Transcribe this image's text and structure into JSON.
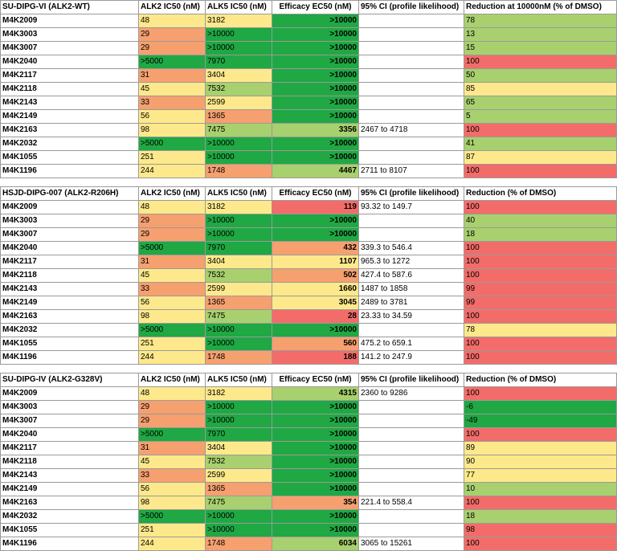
{
  "colors": {
    "dark-green": "#1fa843",
    "light-green": "#a8d06e",
    "yellow": "#fde98b",
    "orange": "#f6a06f",
    "red": "#f26c69",
    "white": "#ffffff"
  },
  "tables": [
    {
      "headers": [
        "SU-DIPG-VI (ALK2-WT)",
        "ALK2 IC50 (nM)",
        "ALK5 IC50 (nM)",
        "Efficacy EC50 (nM)",
        "95% CI (profile likelihood)",
        "Reduction at 10000nM (% of DMSO)"
      ],
      "rows": [
        {
          "compound": "M4K2009",
          "alk2": "48",
          "alk2_c": "ye",
          "alk5": "3182",
          "alk5_c": "ye",
          "ec50": ">10000",
          "ec50_c": "dg",
          "ci": "",
          "ci_c": "wh",
          "red": "78",
          "red_c": "lg"
        },
        {
          "compound": "M4K3003",
          "alk2": "29",
          "alk2_c": "or",
          "alk5": ">10000",
          "alk5_c": "dg",
          "ec50": ">10000",
          "ec50_c": "dg",
          "ci": "",
          "ci_c": "wh",
          "red": "13",
          "red_c": "lg"
        },
        {
          "compound": "M4K3007",
          "alk2": "29",
          "alk2_c": "or",
          "alk5": ">10000",
          "alk5_c": "dg",
          "ec50": ">10000",
          "ec50_c": "dg",
          "ci": "",
          "ci_c": "wh",
          "red": "15",
          "red_c": "lg"
        },
        {
          "compound": "M4K2040",
          "alk2": ">5000",
          "alk2_c": "dg",
          "alk5": "7970",
          "alk5_c": "dg",
          "ec50": ">10000",
          "ec50_c": "dg",
          "ci": "",
          "ci_c": "wh",
          "red": "100",
          "red_c": "rd"
        },
        {
          "compound": "M4K2117",
          "alk2": "31",
          "alk2_c": "or",
          "alk5": "3404",
          "alk5_c": "ye",
          "ec50": ">10000",
          "ec50_c": "dg",
          "ci": "",
          "ci_c": "wh",
          "red": "50",
          "red_c": "lg"
        },
        {
          "compound": "M4K2118",
          "alk2": "45",
          "alk2_c": "ye",
          "alk5": "7532",
          "alk5_c": "lg",
          "ec50": ">10000",
          "ec50_c": "dg",
          "ci": "",
          "ci_c": "wh",
          "red": "85",
          "red_c": "ye"
        },
        {
          "compound": "M4K2143",
          "alk2": "33",
          "alk2_c": "or",
          "alk5": "2599",
          "alk5_c": "ye",
          "ec50": ">10000",
          "ec50_c": "dg",
          "ci": "",
          "ci_c": "wh",
          "red": "65",
          "red_c": "lg"
        },
        {
          "compound": "M4K2149",
          "alk2": "56",
          "alk2_c": "ye",
          "alk5": "1365",
          "alk5_c": "or",
          "ec50": ">10000",
          "ec50_c": "dg",
          "ci": "",
          "ci_c": "wh",
          "red": "5",
          "red_c": "lg"
        },
        {
          "compound": "M4K2163",
          "alk2": "98",
          "alk2_c": "ye",
          "alk5": "7475",
          "alk5_c": "lg",
          "ec50": "3356",
          "ec50_c": "lg",
          "ci": "2467 to 4718",
          "ci_c": "wh",
          "red": "100",
          "red_c": "rd"
        },
        {
          "compound": "M4K2032",
          "alk2": ">5000",
          "alk2_c": "dg",
          "alk5": ">10000",
          "alk5_c": "dg",
          "ec50": ">10000",
          "ec50_c": "dg",
          "ci": "",
          "ci_c": "wh",
          "red": "41",
          "red_c": "lg"
        },
        {
          "compound": "M4K1055",
          "alk2": "251",
          "alk2_c": "ye",
          "alk5": ">10000",
          "alk5_c": "dg",
          "ec50": ">10000",
          "ec50_c": "dg",
          "ci": "",
          "ci_c": "wh",
          "red": "87",
          "red_c": "ye"
        },
        {
          "compound": "M4K1196",
          "alk2": "244",
          "alk2_c": "ye",
          "alk5": "1748",
          "alk5_c": "or",
          "ec50": "4467",
          "ec50_c": "lg",
          "ci": "2711 to 8107",
          "ci_c": "wh",
          "red": "100",
          "red_c": "rd"
        }
      ]
    },
    {
      "headers": [
        "HSJD-DIPG-007 (ALK2-R206H)",
        "ALK2 IC50 (nM)",
        "ALK5 IC50 (nM)",
        "Efficacy EC50 (nM)",
        "95% CI (profile likelihood)",
        "Reduction (% of DMSO)"
      ],
      "rows": [
        {
          "compound": "M4K2009",
          "alk2": "48",
          "alk2_c": "ye",
          "alk5": "3182",
          "alk5_c": "ye",
          "ec50": "119",
          "ec50_c": "rd",
          "ci": "93.32 to 149.7",
          "ci_c": "wh",
          "red": "100",
          "red_c": "rd"
        },
        {
          "compound": "M4K3003",
          "alk2": "29",
          "alk2_c": "or",
          "alk5": ">10000",
          "alk5_c": "dg",
          "ec50": ">10000",
          "ec50_c": "dg",
          "ci": "",
          "ci_c": "wh",
          "red": "40",
          "red_c": "lg"
        },
        {
          "compound": "M4K3007",
          "alk2": "29",
          "alk2_c": "or",
          "alk5": ">10000",
          "alk5_c": "dg",
          "ec50": ">10000",
          "ec50_c": "dg",
          "ci": "",
          "ci_c": "wh",
          "red": "18",
          "red_c": "lg"
        },
        {
          "compound": "M4K2040",
          "alk2": ">5000",
          "alk2_c": "dg",
          "alk5": "7970",
          "alk5_c": "dg",
          "ec50": "432",
          "ec50_c": "or",
          "ci": "339.3 to 546.4",
          "ci_c": "wh",
          "red": "100",
          "red_c": "rd"
        },
        {
          "compound": "M4K2117",
          "alk2": "31",
          "alk2_c": "or",
          "alk5": "3404",
          "alk5_c": "ye",
          "ec50": "1107",
          "ec50_c": "ye",
          "ci": "965.3 to 1272",
          "ci_c": "wh",
          "red": "100",
          "red_c": "rd"
        },
        {
          "compound": "M4K2118",
          "alk2": "45",
          "alk2_c": "ye",
          "alk5": "7532",
          "alk5_c": "lg",
          "ec50": "502",
          "ec50_c": "or",
          "ci": "427.4 to 587.6",
          "ci_c": "wh",
          "red": "100",
          "red_c": "rd"
        },
        {
          "compound": "M4K2143",
          "alk2": "33",
          "alk2_c": "or",
          "alk5": "2599",
          "alk5_c": "ye",
          "ec50": "1660",
          "ec50_c": "ye",
          "ci": "1487 to 1858",
          "ci_c": "wh",
          "red": "99",
          "red_c": "rd"
        },
        {
          "compound": "M4K2149",
          "alk2": "56",
          "alk2_c": "ye",
          "alk5": "1365",
          "alk5_c": "or",
          "ec50": "3045",
          "ec50_c": "ye",
          "ci": "2489 to 3781",
          "ci_c": "wh",
          "red": "99",
          "red_c": "rd"
        },
        {
          "compound": "M4K2163",
          "alk2": "98",
          "alk2_c": "ye",
          "alk5": "7475",
          "alk5_c": "lg",
          "ec50": "28",
          "ec50_c": "rd",
          "ci": "23.33 to 34.59",
          "ci_c": "wh",
          "red": "100",
          "red_c": "rd"
        },
        {
          "compound": "M4K2032",
          "alk2": ">5000",
          "alk2_c": "dg",
          "alk5": ">10000",
          "alk5_c": "dg",
          "ec50": ">10000",
          "ec50_c": "dg",
          "ci": "",
          "ci_c": "wh",
          "red": "78",
          "red_c": "ye"
        },
        {
          "compound": "M4K1055",
          "alk2": "251",
          "alk2_c": "ye",
          "alk5": ">10000",
          "alk5_c": "dg",
          "ec50": "560",
          "ec50_c": "or",
          "ci": "475.2 to 659.1",
          "ci_c": "wh",
          "red": "100",
          "red_c": "rd"
        },
        {
          "compound": "M4K1196",
          "alk2": "244",
          "alk2_c": "ye",
          "alk5": "1748",
          "alk5_c": "or",
          "ec50": "188",
          "ec50_c": "rd",
          "ci": "141.2 to 247.9",
          "ci_c": "wh",
          "red": "100",
          "red_c": "rd"
        }
      ]
    },
    {
      "headers": [
        "SU-DIPG-IV (ALK2-G328V)",
        "ALK2 IC50 (nM)",
        "ALK5 IC50 (nM)",
        "Efficacy EC50 (nM)",
        "95% CI (profile likelihood)",
        "Reduction (% of DMSO)"
      ],
      "rows": [
        {
          "compound": "M4K2009",
          "alk2": "48",
          "alk2_c": "ye",
          "alk5": "3182",
          "alk5_c": "ye",
          "ec50": "4315",
          "ec50_c": "lg",
          "ci": "2360 to 9286",
          "ci_c": "wh",
          "red": "100",
          "red_c": "rd"
        },
        {
          "compound": "M4K3003",
          "alk2": "29",
          "alk2_c": "or",
          "alk5": ">10000",
          "alk5_c": "dg",
          "ec50": ">10000",
          "ec50_c": "dg",
          "ci": "",
          "ci_c": "wh",
          "red": "-6",
          "red_c": "dg"
        },
        {
          "compound": "M4K3007",
          "alk2": "29",
          "alk2_c": "or",
          "alk5": ">10000",
          "alk5_c": "dg",
          "ec50": ">10000",
          "ec50_c": "dg",
          "ci": "",
          "ci_c": "wh",
          "red": "-49",
          "red_c": "dg"
        },
        {
          "compound": "M4K2040",
          "alk2": ">5000",
          "alk2_c": "dg",
          "alk5": "7970",
          "alk5_c": "dg",
          "ec50": ">10000",
          "ec50_c": "dg",
          "ci": "",
          "ci_c": "wh",
          "red": "100",
          "red_c": "rd"
        },
        {
          "compound": "M4K2117",
          "alk2": "31",
          "alk2_c": "or",
          "alk5": "3404",
          "alk5_c": "ye",
          "ec50": ">10000",
          "ec50_c": "dg",
          "ci": "",
          "ci_c": "wh",
          "red": "89",
          "red_c": "ye"
        },
        {
          "compound": "M4K2118",
          "alk2": "45",
          "alk2_c": "ye",
          "alk5": "7532",
          "alk5_c": "lg",
          "ec50": ">10000",
          "ec50_c": "dg",
          "ci": "",
          "ci_c": "wh",
          "red": "90",
          "red_c": "ye"
        },
        {
          "compound": "M4K2143",
          "alk2": "33",
          "alk2_c": "or",
          "alk5": "2599",
          "alk5_c": "ye",
          "ec50": ">10000",
          "ec50_c": "dg",
          "ci": "",
          "ci_c": "wh",
          "red": "77",
          "red_c": "ye"
        },
        {
          "compound": "M4K2149",
          "alk2": "56",
          "alk2_c": "ye",
          "alk5": "1365",
          "alk5_c": "or",
          "ec50": ">10000",
          "ec50_c": "dg",
          "ci": "",
          "ci_c": "wh",
          "red": "10",
          "red_c": "lg"
        },
        {
          "compound": "M4K2163",
          "alk2": "98",
          "alk2_c": "ye",
          "alk5": "7475",
          "alk5_c": "lg",
          "ec50": "354",
          "ec50_c": "or",
          "ci": "221.4 to 558.4",
          "ci_c": "wh",
          "red": "100",
          "red_c": "rd"
        },
        {
          "compound": "M4K2032",
          "alk2": ">5000",
          "alk2_c": "dg",
          "alk5": ">10000",
          "alk5_c": "dg",
          "ec50": ">10000",
          "ec50_c": "dg",
          "ci": "",
          "ci_c": "wh",
          "red": "18",
          "red_c": "lg"
        },
        {
          "compound": "M4K1055",
          "alk2": "251",
          "alk2_c": "ye",
          "alk5": ">10000",
          "alk5_c": "dg",
          "ec50": ">10000",
          "ec50_c": "dg",
          "ci": "",
          "ci_c": "wh",
          "red": "98",
          "red_c": "rd"
        },
        {
          "compound": "M4K1196",
          "alk2": "244",
          "alk2_c": "ye",
          "alk5": "1748",
          "alk5_c": "or",
          "ec50": "6034",
          "ec50_c": "lg",
          "ci": "3065 to 15261",
          "ci_c": "wh",
          "red": "100",
          "red_c": "rd"
        }
      ]
    }
  ]
}
